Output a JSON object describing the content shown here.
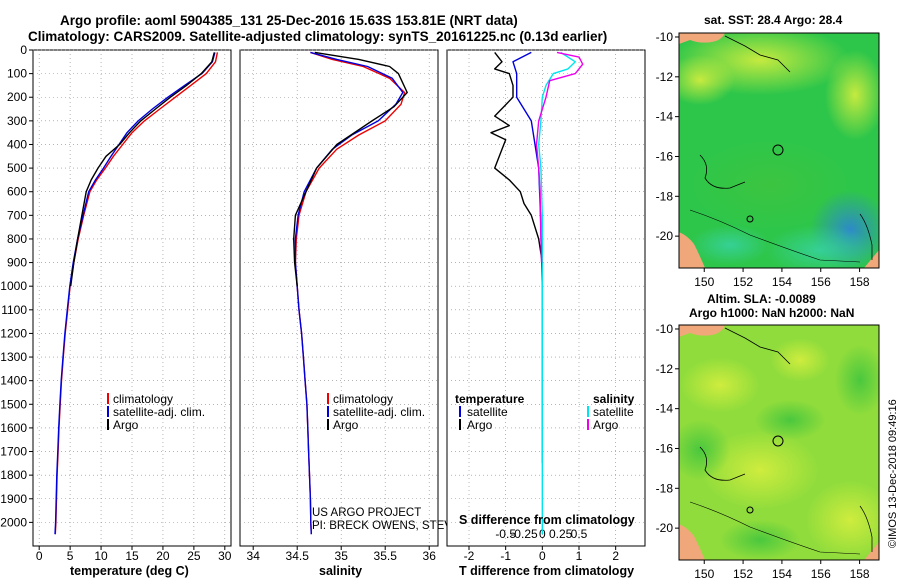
{
  "header": {
    "title_line1": "Argo profile: aoml 5904385_131 25-Dec-2016 15.63S 153.81E (NRT data)",
    "title_line2": "Climatology: CARS2009. Satellite-adjusted climatology: synTS_20161225.nc (0.13d earlier)"
  },
  "credits": {
    "project": "US ARGO PROJECT",
    "pis": "PI: BRECK OWENS, STEVE JAYNE, P.E. ROBBINS",
    "imos": "©IMOS 13-Dec-2018 09:49:16"
  },
  "colors": {
    "climatology": "#ee0000",
    "satellite": "#0000dd",
    "argo": "#000000",
    "sal_satellite": "#00e5ee",
    "sal_argo": "#ee00ee"
  },
  "chart_data": [
    {
      "type": "line",
      "id": "temperature",
      "xlabel": "temperature (deg C)",
      "xlim": [
        -1,
        31
      ],
      "xticks": [
        0,
        5,
        10,
        15,
        20,
        25,
        30
      ],
      "ylim": [
        2100,
        0
      ],
      "yticks": [
        0,
        100,
        200,
        300,
        400,
        500,
        600,
        700,
        800,
        900,
        1000,
        1100,
        1200,
        1300,
        1400,
        1500,
        1600,
        1700,
        1800,
        1900,
        2000
      ],
      "legend": [
        "climatology",
        "satellite-adj. clim.",
        "Argo"
      ],
      "series": [
        {
          "name": "climatology",
          "color": "#ee0000",
          "points": [
            [
              28.8,
              10
            ],
            [
              28.5,
              50
            ],
            [
              27,
              100
            ],
            [
              24.5,
              150
            ],
            [
              22,
              200
            ],
            [
              19.5,
              250
            ],
            [
              17,
              300
            ],
            [
              15,
              350
            ],
            [
              13.5,
              400
            ],
            [
              12,
              450
            ],
            [
              10.7,
              500
            ],
            [
              9.3,
              550
            ],
            [
              8.2,
              600
            ],
            [
              7.2,
              700
            ],
            [
              6.3,
              800
            ],
            [
              5.6,
              900
            ],
            [
              5,
              1000
            ],
            [
              4.6,
              1100
            ],
            [
              4.2,
              1200
            ],
            [
              3.9,
              1300
            ],
            [
              3.6,
              1400
            ],
            [
              3.4,
              1500
            ],
            [
              3.2,
              1600
            ],
            [
              3.05,
              1700
            ],
            [
              2.9,
              1800
            ],
            [
              2.8,
              1900
            ],
            [
              2.7,
              2000
            ],
            [
              2.6,
              2050
            ]
          ]
        },
        {
          "name": "satellite-adj. clim.",
          "color": "#0000dd",
          "points": [
            [
              28.4,
              10
            ],
            [
              28,
              50
            ],
            [
              26.3,
              100
            ],
            [
              23.5,
              150
            ],
            [
              20.8,
              200
            ],
            [
              18.3,
              250
            ],
            [
              16,
              300
            ],
            [
              14.2,
              350
            ],
            [
              12.9,
              400
            ],
            [
              11.6,
              450
            ],
            [
              10.4,
              500
            ],
            [
              9.1,
              550
            ],
            [
              8,
              600
            ],
            [
              7.1,
              700
            ],
            [
              6.2,
              800
            ],
            [
              5.5,
              900
            ],
            [
              4.95,
              1000
            ],
            [
              4.55,
              1100
            ],
            [
              4.15,
              1200
            ],
            [
              3.85,
              1300
            ],
            [
              3.55,
              1400
            ],
            [
              3.35,
              1500
            ],
            [
              3.15,
              1600
            ],
            [
              3,
              1700
            ],
            [
              2.85,
              1800
            ],
            [
              2.75,
              1900
            ],
            [
              2.65,
              2000
            ],
            [
              2.55,
              2050
            ]
          ]
        },
        {
          "name": "Argo",
          "color": "#000000",
          "points": [
            [
              28.3,
              10
            ],
            [
              27.9,
              50
            ],
            [
              26.2,
              100
            ],
            [
              23.8,
              150
            ],
            [
              21.2,
              200
            ],
            [
              18.8,
              250
            ],
            [
              16.4,
              300
            ],
            [
              14.6,
              350
            ],
            [
              13,
              400
            ],
            [
              10.8,
              450
            ],
            [
              9.5,
              500
            ],
            [
              8.4,
              550
            ],
            [
              7.6,
              600
            ],
            [
              6.9,
              700
            ],
            [
              6.2,
              800
            ],
            [
              5.6,
              900
            ],
            [
              5.1,
              1000
            ]
          ]
        }
      ]
    },
    {
      "type": "line",
      "id": "salinity",
      "xlabel": "salinity",
      "xlim": [
        33.85,
        36.1
      ],
      "xticks": [
        34,
        34.5,
        35,
        35.5,
        36
      ],
      "ylim": [
        2100,
        0
      ],
      "legend": [
        "climatology",
        "satellite-adj. clim.",
        "Argo"
      ],
      "series": [
        {
          "name": "climatology",
          "color": "#ee0000",
          "points": [
            [
              34.65,
              10
            ],
            [
              34.9,
              40
            ],
            [
              35.25,
              70
            ],
            [
              35.55,
              120
            ],
            [
              35.72,
              180
            ],
            [
              35.68,
              230
            ],
            [
              35.5,
              300
            ],
            [
              35.2,
              360
            ],
            [
              34.95,
              420
            ],
            [
              34.75,
              500
            ],
            [
              34.6,
              600
            ],
            [
              34.52,
              700
            ],
            [
              34.49,
              800
            ],
            [
              34.48,
              900
            ],
            [
              34.5,
              1000
            ],
            [
              34.52,
              1100
            ],
            [
              34.55,
              1200
            ],
            [
              34.57,
              1300
            ],
            [
              34.59,
              1400
            ],
            [
              34.61,
              1500
            ],
            [
              34.62,
              1600
            ],
            [
              34.63,
              1700
            ],
            [
              34.64,
              1800
            ],
            [
              34.65,
              1900
            ],
            [
              34.655,
              2000
            ],
            [
              34.66,
              2050
            ]
          ]
        },
        {
          "name": "satellite-adj. clim.",
          "color": "#0000dd",
          "points": [
            [
              34.65,
              10
            ],
            [
              34.95,
              40
            ],
            [
              35.3,
              70
            ],
            [
              35.58,
              120
            ],
            [
              35.7,
              180
            ],
            [
              35.62,
              230
            ],
            [
              35.42,
              300
            ],
            [
              35.12,
              360
            ],
            [
              34.9,
              420
            ],
            [
              34.72,
              500
            ],
            [
              34.58,
              600
            ],
            [
              34.51,
              700
            ],
            [
              34.48,
              800
            ],
            [
              34.48,
              900
            ],
            [
              34.5,
              1000
            ],
            [
              34.52,
              1100
            ],
            [
              34.55,
              1200
            ],
            [
              34.57,
              1300
            ],
            [
              34.59,
              1400
            ],
            [
              34.61,
              1500
            ],
            [
              34.62,
              1600
            ],
            [
              34.63,
              1700
            ],
            [
              34.64,
              1800
            ],
            [
              34.65,
              1900
            ],
            [
              34.655,
              2000
            ],
            [
              34.66,
              2050
            ]
          ]
        },
        {
          "name": "Argo",
          "color": "#000000",
          "points": [
            [
              34.7,
              10
            ],
            [
              35.2,
              40
            ],
            [
              35.55,
              70
            ],
            [
              35.65,
              100
            ],
            [
              35.7,
              140
            ],
            [
              35.75,
              180
            ],
            [
              35.6,
              240
            ],
            [
              35.35,
              300
            ],
            [
              34.95,
              400
            ],
            [
              34.72,
              500
            ],
            [
              34.6,
              600
            ],
            [
              34.48,
              700
            ],
            [
              34.46,
              800
            ],
            [
              34.47,
              900
            ],
            [
              34.5,
              1000
            ]
          ]
        }
      ]
    },
    {
      "type": "line",
      "id": "difference",
      "xlabel": "T difference from climatology",
      "xlabel_top": "S difference from climatology",
      "xlim": [
        -2.6,
        2.8
      ],
      "xticks": [
        -2,
        -1,
        0,
        1,
        2
      ],
      "s_xticks": [
        -0.5,
        -0.25,
        0,
        0.25,
        0.5
      ],
      "s_xtick_labels": [
        "-0.5",
        "-0.25",
        "0",
        "0.25",
        "0.5"
      ],
      "ylim": [
        2100,
        0
      ],
      "legend_left_title": "temperature",
      "legend_right_title": "salinity",
      "legend_left": [
        "satellite",
        "Argo"
      ],
      "legend_right": [
        "satellite",
        "Argo"
      ],
      "series": [
        {
          "name": "T satellite",
          "color": "#0000dd",
          "points": [
            [
              -0.3,
              10
            ],
            [
              -0.8,
              50
            ],
            [
              -0.7,
              100
            ],
            [
              -0.7,
              150
            ],
            [
              -0.7,
              200
            ],
            [
              -0.3,
              300
            ],
            [
              -0.2,
              400
            ],
            [
              -0.1,
              500
            ],
            [
              -0.05,
              700
            ],
            [
              0,
              1000
            ],
            [
              0,
              1500
            ],
            [
              0,
              1750
            ]
          ]
        },
        {
          "name": "T Argo",
          "color": "#000000",
          "points": [
            [
              -1.3,
              10
            ],
            [
              -1.1,
              50
            ],
            [
              -1.3,
              80
            ],
            [
              -0.9,
              100
            ],
            [
              -0.8,
              150
            ],
            [
              -0.8,
              200
            ],
            [
              -1.3,
              280
            ],
            [
              -0.9,
              320
            ],
            [
              -1.4,
              350
            ],
            [
              -1,
              380
            ],
            [
              -1.1,
              420
            ],
            [
              -1.3,
              500
            ],
            [
              -0.9,
              550
            ],
            [
              -0.6,
              600
            ],
            [
              -0.5,
              650
            ],
            [
              -0.3,
              700
            ],
            [
              -0.1,
              800
            ],
            [
              0,
              900
            ],
            [
              0,
              990
            ]
          ]
        },
        {
          "name": "S satellite",
          "color": "#00e5ee",
          "points": [
            [
              0.25,
              10
            ],
            [
              0.45,
              50
            ],
            [
              0.35,
              80
            ],
            [
              0.15,
              100
            ],
            [
              0.05,
              150
            ],
            [
              0,
              200
            ],
            [
              -0.02,
              300
            ],
            [
              -0.05,
              400
            ],
            [
              -0.02,
              500
            ],
            [
              0,
              700
            ],
            [
              0,
              1000
            ],
            [
              0,
              1500
            ],
            [
              0,
              2050
            ]
          ]
        },
        {
          "name": "S Argo",
          "color": "#ee00ee",
          "points": [
            [
              0.2,
              10
            ],
            [
              0.5,
              30
            ],
            [
              0.55,
              60
            ],
            [
              0.45,
              100
            ],
            [
              0.1,
              130
            ],
            [
              0.05,
              200
            ],
            [
              -0.05,
              300
            ],
            [
              -0.08,
              400
            ],
            [
              -0.05,
              500
            ],
            [
              -0.03,
              600
            ],
            [
              -0.02,
              800
            ],
            [
              -0.01,
              900
            ]
          ]
        }
      ]
    },
    {
      "type": "heatmap",
      "id": "sst_map",
      "title": "sat. SST: 28.4 Argo: 28.4",
      "xticks": [
        150,
        152,
        154,
        156,
        158
      ],
      "yticks": [
        -10,
        -12,
        -14,
        -16,
        -18,
        -20
      ],
      "xlim": [
        148.7,
        159
      ],
      "ylim": [
        -21.6,
        -9.8
      ]
    },
    {
      "type": "heatmap",
      "id": "sla_map",
      "title_line1": "Altim. SLA: -0.0089",
      "title_line2": "Argo h1000: NaN h2000: NaN",
      "xticks": [
        150,
        152,
        154,
        156,
        158
      ],
      "yticks": [
        -10,
        -12,
        -14,
        -16,
        -18,
        -20
      ],
      "xlim": [
        148.7,
        159
      ],
      "ylim": [
        -21.6,
        -9.8
      ]
    }
  ]
}
